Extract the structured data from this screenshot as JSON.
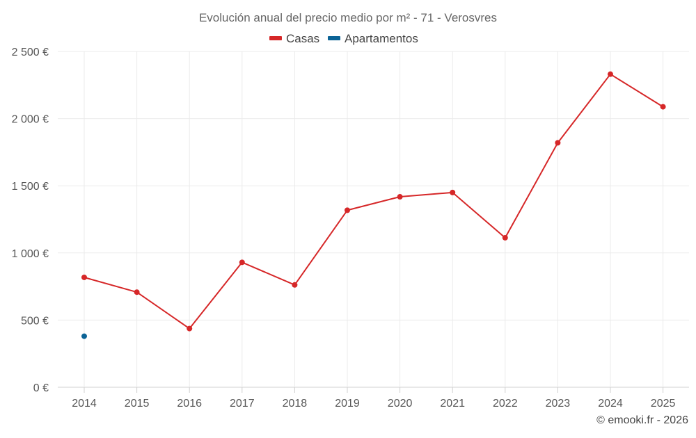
{
  "chart_data": {
    "type": "line",
    "title": "Evolución anual del precio medio por m² - 71 - Verosvres",
    "categories": [
      "2014",
      "2015",
      "2016",
      "2017",
      "2018",
      "2019",
      "2020",
      "2021",
      "2022",
      "2023",
      "2024",
      "2025"
    ],
    "series": [
      {
        "name": "Casas",
        "color": "#d62728",
        "values": [
          818,
          708,
          437,
          930,
          762,
          1318,
          1418,
          1450,
          1113,
          1820,
          2331,
          2088
        ]
      },
      {
        "name": "Apartamentos",
        "color": "#0b6396",
        "values": [
          380,
          null,
          null,
          null,
          null,
          null,
          null,
          null,
          null,
          null,
          null,
          null
        ]
      }
    ],
    "ylim": [
      0,
      2500
    ],
    "yticks": [
      0,
      500,
      1000,
      1500,
      2000,
      2500
    ],
    "ytick_labels": [
      "0 €",
      "500 €",
      "1 000 €",
      "1 500 €",
      "2 000 €",
      "2 500 €"
    ],
    "xlabel": "",
    "ylabel": "",
    "grid": true,
    "legend_position": "top-center"
  },
  "credit": "© emooki.fr - 2026"
}
